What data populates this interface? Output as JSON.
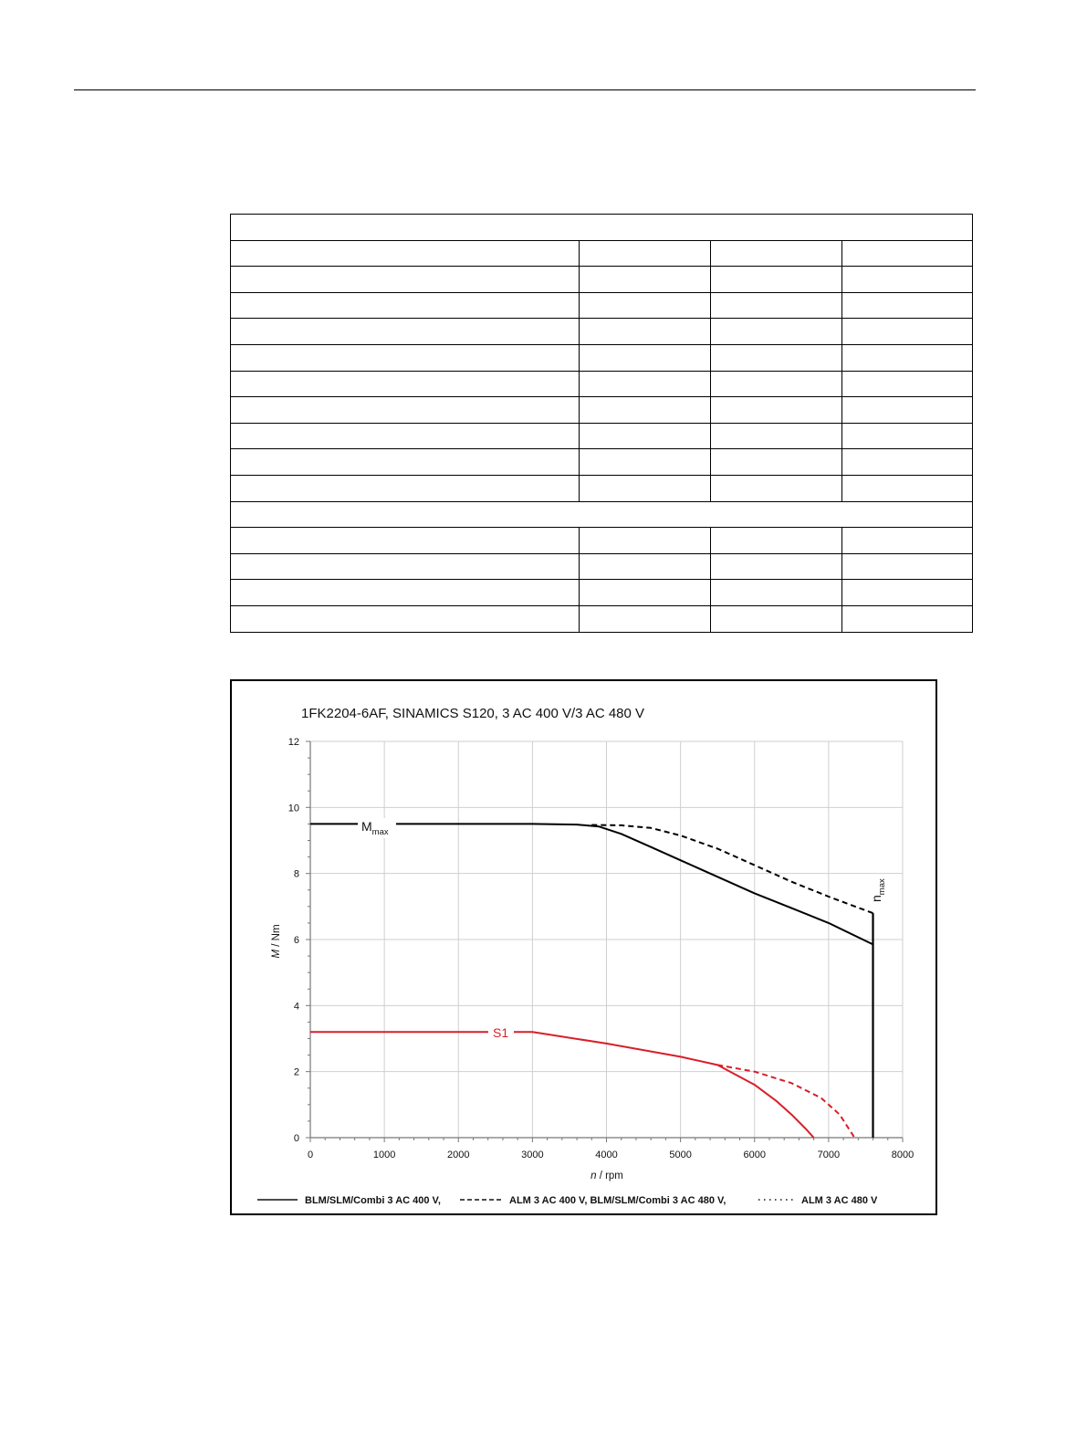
{
  "chart_data": {
    "type": "line",
    "title": "1FK2204-6AF,  SINAMICS S120,  3 AC 400 V/3 AC 480 V",
    "xlabel_italic": "n",
    "xlabel_unit": " / rpm",
    "ylabel_italic": "M",
    "ylabel_unit": " / Nm",
    "xlim": [
      0,
      8000
    ],
    "ylim": [
      0,
      12
    ],
    "x_ticks": [
      "0",
      "1000",
      "2000",
      "3000",
      "4000",
      "5000",
      "6000",
      "7000",
      "8000"
    ],
    "y_ticks": [
      "0",
      "2",
      "4",
      "6",
      "8",
      "10",
      "12"
    ],
    "grid": true,
    "annotations": {
      "mmax_main": "M",
      "mmax_sub": "max",
      "s1": "S1",
      "nmax_main": "n",
      "nmax_sub": "max"
    },
    "legend": {
      "placement": "bottom",
      "entries": [
        {
          "label": "BLM/SLM/Combi 3 AC 400 V,",
          "style": "solid"
        },
        {
          "label": "ALM 3 AC 400 V, BLM/SLM/Combi 3 AC 480 V,",
          "style": "dashed"
        },
        {
          "label": "ALM 3 AC 480 V",
          "style": "dotted"
        }
      ]
    },
    "series": [
      {
        "key": "mmax_400",
        "color": "#000000",
        "style": "solid",
        "x": [
          0,
          3000,
          3600,
          3900,
          4200,
          4600,
          5000,
          5500,
          6000,
          6500,
          7000,
          7600
        ],
        "y": [
          9.5,
          9.5,
          9.48,
          9.42,
          9.2,
          8.8,
          8.4,
          7.9,
          7.4,
          6.95,
          6.5,
          5.85
        ]
      },
      {
        "key": "mmax_480",
        "color": "#000000",
        "style": "dashed",
        "x": [
          3800,
          4200,
          4600,
          5000,
          5500,
          6000,
          6500,
          7000,
          7600
        ],
        "y": [
          9.47,
          9.46,
          9.38,
          9.15,
          8.75,
          8.25,
          7.75,
          7.3,
          6.8
        ]
      },
      {
        "key": "s1_400",
        "color": "#d81e2a",
        "style": "solid",
        "x": [
          0,
          3000,
          4000,
          5000,
          5500,
          6000,
          6300,
          6500,
          6700,
          6800
        ],
        "y": [
          3.2,
          3.2,
          2.85,
          2.45,
          2.2,
          1.6,
          1.1,
          0.7,
          0.25,
          0
        ]
      },
      {
        "key": "s1_480",
        "color": "#d81e2a",
        "style": "dashed",
        "x": [
          5500,
          6000,
          6500,
          6900,
          7150,
          7350
        ],
        "y": [
          2.2,
          2.0,
          1.65,
          1.2,
          0.7,
          0
        ]
      },
      {
        "key": "nmax",
        "color": "#000000",
        "style": "solid",
        "x": [
          7600,
          7600
        ],
        "y": [
          0,
          6.8
        ]
      }
    ]
  }
}
